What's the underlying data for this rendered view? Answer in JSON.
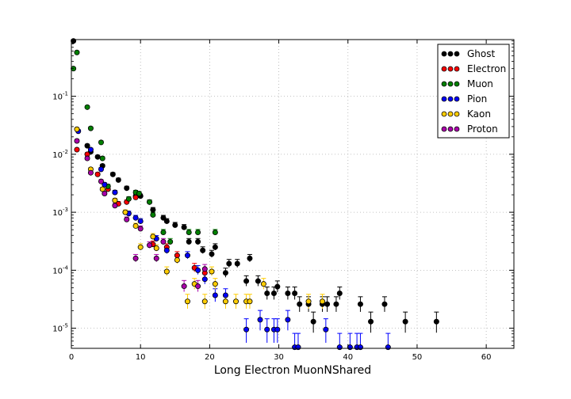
{
  "chart_data": {
    "type": "scatter",
    "xlabel": "Long Electron MuonNShared",
    "ylabel": "",
    "xlim": [
      0,
      64
    ],
    "ylim": [
      4.5e-06,
      0.95
    ],
    "yscale": "log",
    "grid": true,
    "legend_position": "top-right",
    "xticks": [
      0,
      10,
      20,
      30,
      40,
      50,
      60
    ],
    "xtick_labels": [
      "0",
      "10",
      "20",
      "30",
      "40",
      "50",
      "60"
    ],
    "yticks": [
      1e-05,
      0.0001,
      0.001,
      0.01,
      0.1
    ],
    "ytick_labels": [
      {
        "base": "10",
        "exp": "-5"
      },
      {
        "base": "10",
        "exp": "-4"
      },
      {
        "base": "10",
        "exp": "-3"
      },
      {
        "base": "10",
        "exp": "-2"
      },
      {
        "base": "10",
        "exp": "-1"
      }
    ],
    "series": [
      {
        "name": "Ghost",
        "color": "#000000",
        "points": [
          [
            0.3,
            0.9
          ],
          [
            2.3,
            0.014
          ],
          [
            2.8,
            0.011
          ],
          [
            3.8,
            0.009
          ],
          [
            4.5,
            0.0063
          ],
          [
            6,
            0.0045
          ],
          [
            6.8,
            0.0036
          ],
          [
            8,
            0.0026
          ],
          [
            9.3,
            0.0019
          ],
          [
            10,
            0.0019
          ],
          [
            11.3,
            0.0015
          ],
          [
            11.8,
            0.0011
          ],
          [
            13.3,
            0.0008
          ],
          [
            13.8,
            0.0007
          ],
          [
            15,
            0.0006
          ],
          [
            16.3,
            0.00055
          ],
          [
            17,
            0.00031
          ],
          [
            18.3,
            0.00031
          ],
          [
            19,
            0.00022
          ],
          [
            20.3,
            0.00019
          ],
          [
            20.8,
            0.00025
          ],
          [
            22.3,
            9e-05
          ],
          [
            22.8,
            0.00013
          ],
          [
            24,
            0.00013
          ],
          [
            25.3,
            6.5e-05
          ],
          [
            25.8,
            0.00016
          ],
          [
            27,
            6.5e-05
          ],
          [
            28.3,
            4e-05
          ],
          [
            29.3,
            4e-05
          ],
          [
            29.8,
            5.2e-05
          ],
          [
            31.3,
            4e-05
          ],
          [
            32.3,
            4e-05
          ],
          [
            33,
            2.6e-05
          ],
          [
            34.3,
            2.6e-05
          ],
          [
            35,
            1.3e-05
          ],
          [
            36.3,
            2.6e-05
          ],
          [
            37,
            2.6e-05
          ],
          [
            38.3,
            2.6e-05
          ],
          [
            38.8,
            4e-05
          ],
          [
            41.8,
            2.6e-05
          ],
          [
            43.3,
            1.3e-05
          ],
          [
            45.3,
            2.6e-05
          ],
          [
            48.3,
            1.3e-05
          ],
          [
            52.8,
            1.3e-05
          ]
        ]
      },
      {
        "name": "Electron",
        "color": "#ff0000",
        "points": [
          [
            0.8,
            0.012
          ],
          [
            2.3,
            0.01
          ],
          [
            3.8,
            0.0045
          ],
          [
            5.3,
            0.0025
          ],
          [
            6.8,
            0.0014
          ],
          [
            8,
            0.0015
          ],
          [
            9.3,
            0.0018
          ],
          [
            11.8,
            0.00028
          ],
          [
            13.8,
            0.00025
          ],
          [
            15.3,
            0.00018
          ],
          [
            17.8,
            0.00011
          ],
          [
            19.3,
            9e-05
          ]
        ]
      },
      {
        "name": "Muon",
        "color": "#008000",
        "points": [
          [
            0.3,
            0.3
          ],
          [
            0.8,
            0.57
          ],
          [
            2.3,
            0.065
          ],
          [
            2.8,
            0.028
          ],
          [
            4.3,
            0.016
          ],
          [
            4.5,
            0.0085
          ],
          [
            5.3,
            0.0028
          ],
          [
            6.3,
            0.0022
          ],
          [
            8.3,
            0.0017
          ],
          [
            9.3,
            0.0022
          ],
          [
            9.8,
            0.0021
          ],
          [
            11.3,
            0.0015
          ],
          [
            11.8,
            0.0009
          ],
          [
            13.3,
            0.00045
          ],
          [
            14.3,
            0.00031
          ],
          [
            17,
            0.00045
          ],
          [
            18.3,
            0.00045
          ],
          [
            20.8,
            0.00045
          ]
        ]
      },
      {
        "name": "Pion",
        "color": "#0000ff",
        "points": [
          [
            1,
            0.025
          ],
          [
            2.8,
            0.012
          ],
          [
            4.3,
            0.0055
          ],
          [
            4.8,
            0.003
          ],
          [
            6.3,
            0.0022
          ],
          [
            8.3,
            0.00095
          ],
          [
            9.3,
            0.0008
          ],
          [
            10,
            0.0007
          ],
          [
            12.3,
            0.00035
          ],
          [
            13.8,
            0.00022
          ],
          [
            16.8,
            0.00018
          ],
          [
            18.3,
            0.0001
          ],
          [
            19.3,
            7e-05
          ],
          [
            20.8,
            3.7e-05
          ],
          [
            22.3,
            3.7e-05
          ],
          [
            25.3,
            9.5e-06
          ],
          [
            27.3,
            1.4e-05
          ],
          [
            28.3,
            9.5e-06
          ],
          [
            29.3,
            9.5e-06
          ],
          [
            29.8,
            9.5e-06
          ],
          [
            31.3,
            1.4e-05
          ],
          [
            32.3,
            4.7e-06
          ],
          [
            32.8,
            4.7e-06
          ],
          [
            36.8,
            9.5e-06
          ],
          [
            38.8,
            4.7e-06
          ],
          [
            40.3,
            4.7e-06
          ],
          [
            41.3,
            4.7e-06
          ],
          [
            41.8,
            4.7e-06
          ],
          [
            45.8,
            4.7e-06
          ]
        ]
      },
      {
        "name": "Kaon",
        "color": "#ffcc00",
        "points": [
          [
            0.8,
            0.027
          ],
          [
            2.8,
            0.0055
          ],
          [
            4.5,
            0.0025
          ],
          [
            6.3,
            0.0016
          ],
          [
            7.8,
            0.001
          ],
          [
            9.3,
            0.00058
          ],
          [
            10,
            0.00025
          ],
          [
            11.8,
            0.00038
          ],
          [
            12.3,
            0.00024
          ],
          [
            13.8,
            9.5e-05
          ],
          [
            15.3,
            0.00015
          ],
          [
            16.8,
            2.9e-05
          ],
          [
            17.8,
            5.8e-05
          ],
          [
            19.3,
            2.9e-05
          ],
          [
            20.3,
            9.5e-05
          ],
          [
            20.8,
            5.8e-05
          ],
          [
            22.3,
            2.9e-05
          ],
          [
            23.8,
            2.9e-05
          ],
          [
            25.3,
            2.9e-05
          ],
          [
            25.8,
            2.9e-05
          ],
          [
            27.8,
            5.8e-05
          ],
          [
            34.3,
            2.9e-05
          ],
          [
            36.3,
            2.9e-05
          ]
        ]
      },
      {
        "name": "Proton",
        "color": "#aa00aa",
        "points": [
          [
            0.8,
            0.017
          ],
          [
            2.3,
            0.0085
          ],
          [
            2.8,
            0.0048
          ],
          [
            4.3,
            0.0034
          ],
          [
            4.8,
            0.0021
          ],
          [
            6.3,
            0.0013
          ],
          [
            8,
            0.00075
          ],
          [
            9.3,
            0.00016
          ],
          [
            10,
            0.00052
          ],
          [
            11.3,
            0.00027
          ],
          [
            12.3,
            0.00016
          ],
          [
            13.3,
            0.00031
          ],
          [
            16.3,
            5.3e-05
          ],
          [
            18.3,
            5.3e-05
          ],
          [
            19.3,
            0.000105
          ]
        ]
      }
    ]
  }
}
